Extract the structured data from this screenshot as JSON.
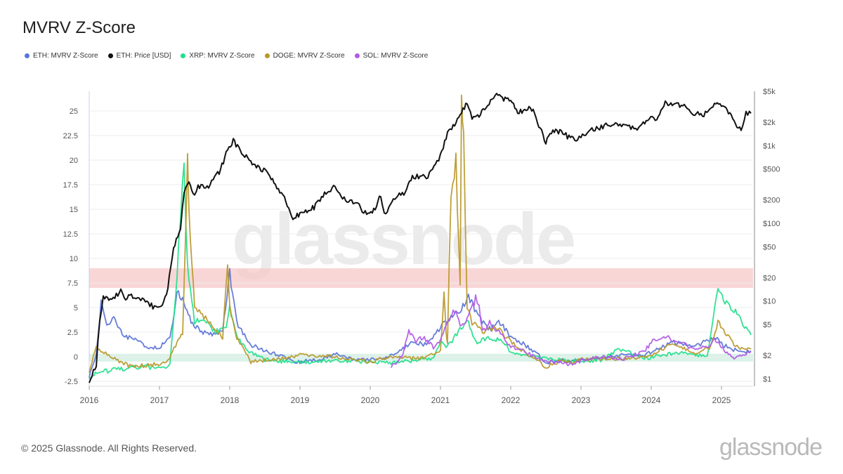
{
  "page": {
    "footer": "© 2025 Glassnode. All Rights Reserved.",
    "brand": "glassnode",
    "watermark": "glassnode"
  },
  "chart_data": {
    "type": "line",
    "title": "MVRV Z-Score",
    "xlabel": "",
    "ylabel": "",
    "xlim": [
      2016.0,
      2025.45
    ],
    "ylim": [
      -3,
      27
    ],
    "y2lim_log": [
      0.8,
      5000
    ],
    "x_ticks": [
      "2016",
      "2017",
      "2018",
      "2019",
      "2020",
      "2021",
      "2022",
      "2023",
      "2024",
      "2025"
    ],
    "y_ticks": [
      "-2.5",
      "0",
      "2.5",
      "5",
      "7.5",
      "10",
      "12.5",
      "15",
      "17.5",
      "20",
      "22.5",
      "25"
    ],
    "y2_ticks": [
      "$1",
      "$2",
      "$5",
      "$10",
      "$20",
      "$50",
      "$100",
      "$200",
      "$500",
      "$1k",
      "$2k",
      "$5k"
    ],
    "bands": [
      {
        "from": 7.0,
        "to": 9.0,
        "color": "#f7c8c8"
      },
      {
        "from": -0.5,
        "to": 0.3,
        "color": "#cfeee0"
      }
    ],
    "legend": [
      {
        "label": "ETH: MVRV Z-Score",
        "color": "#5b73d6"
      },
      {
        "label": "ETH: Price [USD]",
        "color": "#111111"
      },
      {
        "label": "XRP: MVRV Z-Score",
        "color": "#1fe08a"
      },
      {
        "label": "DOGE: MVRV Z-Score",
        "color": "#b8982a"
      },
      {
        "label": "SOL: MVRV Z-Score",
        "color": "#b05ae6"
      }
    ],
    "series": [
      {
        "name": "ETH: MVRV Z-Score",
        "color": "#5b73d6",
        "axis": "left",
        "x": [
          2016.0,
          2016.1,
          2016.17,
          2016.25,
          2016.35,
          2016.45,
          2016.55,
          2016.7,
          2016.85,
          2017.0,
          2017.15,
          2017.25,
          2017.35,
          2017.45,
          2017.6,
          2017.75,
          2017.9,
          2018.0,
          2018.1,
          2018.3,
          2018.5,
          2018.7,
          2018.9,
          2019.0,
          2019.3,
          2019.5,
          2019.7,
          2020.0,
          2020.2,
          2020.4,
          2020.6,
          2020.8,
          2021.0,
          2021.15,
          2021.3,
          2021.4,
          2021.55,
          2021.7,
          2021.85,
          2022.0,
          2022.2,
          2022.4,
          2022.5,
          2022.7,
          2022.9,
          2023.0,
          2023.3,
          2023.6,
          2023.9,
          2024.1,
          2024.3,
          2024.5,
          2024.7,
          2024.9,
          2025.0,
          2025.15,
          2025.3,
          2025.42
        ],
        "y": [
          -2.0,
          0.2,
          5.5,
          3.0,
          4.2,
          2.5,
          2.0,
          1.5,
          1.0,
          1.0,
          1.8,
          6.5,
          5.5,
          3.5,
          2.6,
          2.2,
          2.5,
          8.5,
          3.5,
          1.2,
          0.6,
          0.2,
          -0.5,
          -0.5,
          -0.3,
          0.3,
          -0.2,
          -0.3,
          -0.2,
          0.5,
          1.5,
          1.2,
          3.0,
          4.0,
          4.8,
          6.2,
          4.0,
          2.8,
          3.5,
          2.0,
          1.2,
          0.2,
          -0.6,
          -0.4,
          -0.4,
          -0.3,
          -0.1,
          0.2,
          0.1,
          0.9,
          1.5,
          1.2,
          1.3,
          2.0,
          1.3,
          0.8,
          0.4,
          0.6
        ]
      },
      {
        "name": "XRP: MVRV Z-Score",
        "color": "#1fe08a",
        "axis": "left",
        "x": [
          2016.0,
          2016.2,
          2016.5,
          2016.8,
          2017.0,
          2017.15,
          2017.25,
          2017.3,
          2017.35,
          2017.4,
          2017.5,
          2017.6,
          2017.8,
          2017.95,
          2018.0,
          2018.1,
          2018.3,
          2018.5,
          2018.8,
          2019.0,
          2019.5,
          2020.0,
          2020.3,
          2020.6,
          2020.9,
          2021.0,
          2021.1,
          2021.3,
          2021.4,
          2021.5,
          2021.7,
          2021.9,
          2022.0,
          2022.3,
          2022.6,
          2022.9,
          2023.0,
          2023.3,
          2023.55,
          2023.9,
          2024.2,
          2024.5,
          2024.8,
          2024.88,
          2024.95,
          2025.05,
          2025.2,
          2025.35,
          2025.42
        ],
        "y": [
          -2.0,
          -1.5,
          -1.2,
          -1.0,
          -1.2,
          -0.8,
          8.0,
          14.5,
          19.6,
          9.0,
          3.5,
          4.0,
          2.5,
          3.0,
          5.0,
          2.0,
          0.4,
          -0.3,
          -0.5,
          -0.6,
          -0.4,
          -0.5,
          -0.6,
          -0.4,
          -0.2,
          1.5,
          1.0,
          3.0,
          3.5,
          1.5,
          2.0,
          1.5,
          0.5,
          0.0,
          -0.3,
          -0.4,
          -0.5,
          -0.3,
          0.8,
          -0.2,
          0.2,
          0.4,
          0.0,
          4.0,
          7.2,
          5.5,
          4.5,
          2.8,
          2.2
        ]
      },
      {
        "name": "DOGE: MVRV Z-Score",
        "color": "#b8982a",
        "axis": "left",
        "x": [
          2016.0,
          2016.1,
          2016.3,
          2016.6,
          2016.9,
          2017.1,
          2017.25,
          2017.33,
          2017.4,
          2017.42,
          2017.5,
          2017.7,
          2017.9,
          2017.97,
          2018.0,
          2018.1,
          2018.3,
          2018.6,
          2018.9,
          2019.0,
          2019.5,
          2020.0,
          2020.3,
          2020.7,
          2021.0,
          2021.05,
          2021.08,
          2021.1,
          2021.15,
          2021.22,
          2021.28,
          2021.3,
          2021.33,
          2021.38,
          2021.45,
          2021.6,
          2021.8,
          2022.0,
          2022.3,
          2022.5,
          2022.7,
          2022.9,
          2023.0,
          2023.5,
          2024.0,
          2024.3,
          2024.6,
          2024.85,
          2024.95,
          2025.05,
          2025.2,
          2025.42
        ],
        "y": [
          -1.5,
          1.0,
          0.0,
          -1.0,
          -0.8,
          -0.7,
          1.5,
          2.5,
          20.0,
          15.0,
          5.0,
          3.5,
          2.0,
          9.8,
          5.0,
          2.0,
          -0.5,
          -0.3,
          0.0,
          0.2,
          0.0,
          -0.5,
          0.0,
          -0.2,
          0.5,
          6.5,
          2.5,
          1.5,
          17.0,
          20.0,
          7.0,
          26.5,
          22.0,
          5.0,
          3.5,
          2.5,
          3.0,
          1.5,
          0.0,
          -1.0,
          -0.5,
          -0.5,
          -0.3,
          -0.2,
          0.0,
          1.5,
          0.3,
          1.0,
          3.5,
          2.5,
          1.0,
          0.8
        ]
      },
      {
        "name": "SOL: MVRV Z-Score",
        "color": "#b05ae6",
        "axis": "left",
        "x": [
          2020.3,
          2020.45,
          2020.55,
          2020.65,
          2020.75,
          2020.9,
          2021.0,
          2021.1,
          2021.2,
          2021.3,
          2021.4,
          2021.5,
          2021.55,
          2021.6,
          2021.7,
          2021.9,
          2022.0,
          2022.2,
          2022.4,
          2022.6,
          2022.9,
          2023.0,
          2023.3,
          2023.6,
          2023.9,
          2024.0,
          2024.2,
          2024.4,
          2024.6,
          2024.8,
          2024.9,
          2025.0,
          2025.1,
          2025.2,
          2025.3,
          2025.42
        ],
        "y": [
          -1.0,
          0.0,
          2.5,
          1.5,
          2.0,
          1.0,
          1.5,
          3.5,
          4.8,
          3.0,
          4.0,
          6.0,
          5.0,
          2.5,
          3.5,
          2.0,
          1.0,
          0.5,
          -0.2,
          -0.5,
          -0.8,
          -0.4,
          0.0,
          -0.2,
          0.5,
          1.5,
          2.0,
          1.5,
          0.8,
          1.0,
          1.8,
          1.0,
          0.3,
          -0.2,
          0.2,
          0.5
        ]
      },
      {
        "name": "ETH: Price [USD]",
        "color": "#111111",
        "axis": "right",
        "x": [
          2016.0,
          2016.1,
          2016.15,
          2016.2,
          2016.3,
          2016.45,
          2016.5,
          2016.6,
          2016.8,
          2016.95,
          2017.0,
          2017.1,
          2017.2,
          2017.3,
          2017.35,
          2017.42,
          2017.5,
          2017.55,
          2017.7,
          2017.85,
          2017.95,
          2018.05,
          2018.15,
          2018.3,
          2018.4,
          2018.55,
          2018.65,
          2018.8,
          2018.9,
          2019.0,
          2019.1,
          2019.2,
          2019.35,
          2019.5,
          2019.65,
          2019.8,
          2019.95,
          2020.05,
          2020.15,
          2020.2,
          2020.35,
          2020.5,
          2020.6,
          2020.8,
          2020.95,
          2021.0,
          2021.1,
          2021.2,
          2021.3,
          2021.38,
          2021.45,
          2021.55,
          2021.65,
          2021.8,
          2021.9,
          2022.0,
          2022.1,
          2022.2,
          2022.3,
          2022.4,
          2022.5,
          2022.6,
          2022.7,
          2022.85,
          2022.95,
          2023.0,
          2023.2,
          2023.4,
          2023.6,
          2023.8,
          2023.95,
          2024.1,
          2024.2,
          2024.3,
          2024.45,
          2024.6,
          2024.75,
          2024.9,
          2025.0,
          2025.1,
          2025.2,
          2025.28,
          2025.35,
          2025.42
        ],
        "y": [
          0.95,
          1.5,
          6.0,
          11.0,
          10.0,
          13.5,
          11.0,
          11.5,
          10.0,
          8.0,
          8.2,
          12.0,
          45.0,
          90.0,
          260.0,
          330.0,
          220.0,
          300.0,
          300.0,
          460.0,
          780.0,
          1150.0,
          850.0,
          620.0,
          530.0,
          440.0,
          300.0,
          200.0,
          110.0,
          135.0,
          140.0,
          160.0,
          250.0,
          290.0,
          190.0,
          180.0,
          130.0,
          145.0,
          230.0,
          130.0,
          220.0,
          240.0,
          400.0,
          390.0,
          600.0,
          740.0,
          1500.0,
          1800.0,
          2800.0,
          3500.0,
          2200.0,
          2400.0,
          3300.0,
          4500.0,
          4000.0,
          3700.0,
          2700.0,
          2900.0,
          3000.0,
          1800.0,
          1100.0,
          1600.0,
          1500.0,
          1250.0,
          1200.0,
          1300.0,
          1650.0,
          1850.0,
          1800.0,
          1600.0,
          2200.0,
          2300.0,
          3800.0,
          3200.0,
          3400.0,
          2600.0,
          2500.0,
          3500.0,
          3300.0,
          2700.0,
          1900.0,
          1600.0,
          2600.0,
          2600.0
        ]
      }
    ]
  }
}
